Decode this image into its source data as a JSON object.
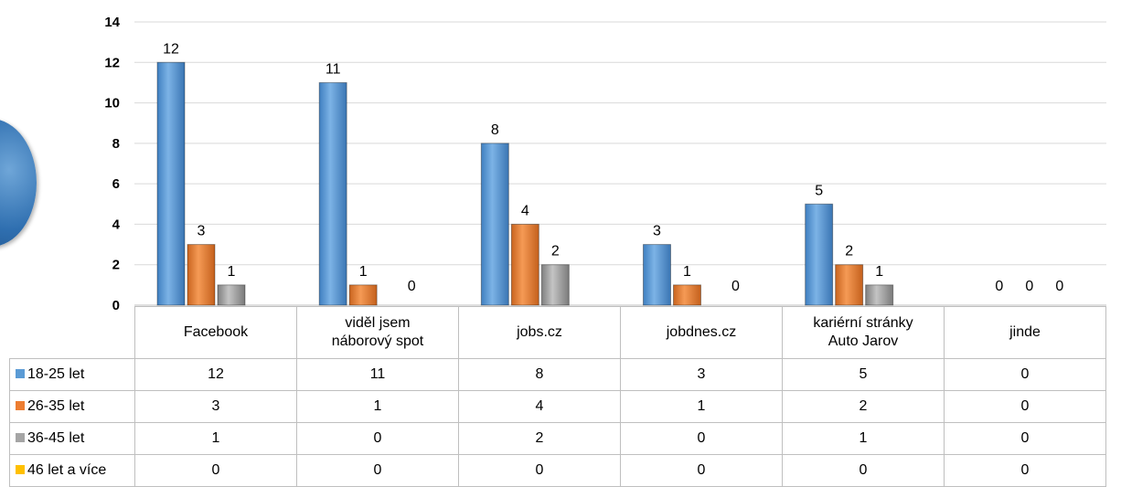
{
  "chart_data": {
    "type": "bar",
    "title": "",
    "xlabel": "",
    "ylabel": "",
    "ylim": [
      0,
      14
    ],
    "yticks": [
      0,
      2,
      4,
      6,
      8,
      10,
      12,
      14
    ],
    "ytick_labels": [
      "0",
      "2",
      "4",
      "6",
      "8",
      "10",
      "12",
      "14"
    ],
    "grid": true,
    "legend": "data-table",
    "categories": [
      "Facebook",
      "viděl jsem náborový spot",
      "jobs.cz",
      "jobdnes.cz",
      "kariérní stránky Auto Jarov",
      "jinde"
    ],
    "series": [
      {
        "name": "18-25 let",
        "color": "#5b9bd5",
        "values": [
          12,
          11,
          8,
          3,
          5,
          0
        ]
      },
      {
        "name": "26-35 let",
        "color": "#ed7d31",
        "values": [
          3,
          1,
          4,
          1,
          2,
          0
        ]
      },
      {
        "name": "36-45 let",
        "color": "#a5a5a5",
        "values": [
          1,
          0,
          2,
          0,
          1,
          0
        ]
      },
      {
        "name": "46 let a více",
        "color": "#ffc000",
        "values": [
          0,
          0,
          0,
          0,
          0,
          0
        ]
      }
    ],
    "data_labels_shown_for_series": [
      0,
      1,
      2
    ]
  },
  "table": {
    "category_lines": [
      [
        "Facebook"
      ],
      [
        "viděl jsem",
        "náborový spot"
      ],
      [
        "jobs.cz"
      ],
      [
        "jobdnes.cz"
      ],
      [
        "kariérní stránky",
        "Auto Jarov"
      ],
      [
        "jinde"
      ]
    ]
  }
}
